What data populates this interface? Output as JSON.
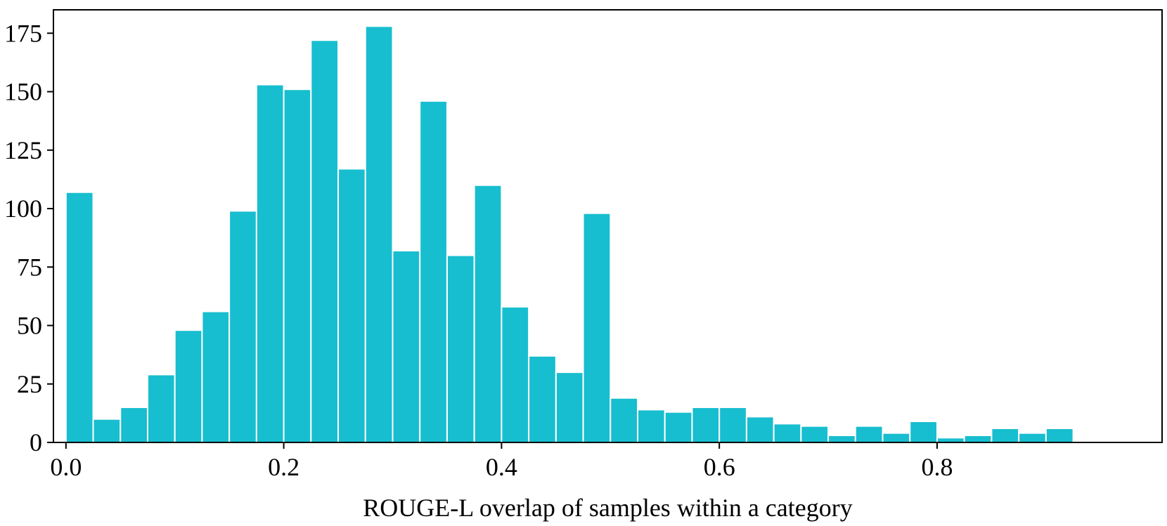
{
  "chart_data": {
    "type": "bar",
    "histogram": true,
    "xlabel": "ROUGE-L overlap of samples within a category",
    "ylabel": "",
    "xlim": [
      -0.0115,
      1.0066
    ],
    "ylim": [
      0,
      185
    ],
    "x_ticks": [
      "0.0",
      "0.2",
      "0.4",
      "0.6",
      "0.8"
    ],
    "y_ticks": [
      "0",
      "25",
      "50",
      "75",
      "100",
      "125",
      "150",
      "175"
    ],
    "bar_color": "#17becf",
    "bins": [
      {
        "start": 0.0,
        "end": 0.025,
        "count": 107
      },
      {
        "start": 0.025,
        "end": 0.05,
        "count": 10
      },
      {
        "start": 0.05,
        "end": 0.075,
        "count": 15
      },
      {
        "start": 0.075,
        "end": 0.1,
        "count": 29
      },
      {
        "start": 0.1,
        "end": 0.125,
        "count": 48
      },
      {
        "start": 0.125,
        "end": 0.15,
        "count": 56
      },
      {
        "start": 0.15,
        "end": 0.175,
        "count": 99
      },
      {
        "start": 0.175,
        "end": 0.2,
        "count": 153
      },
      {
        "start": 0.2,
        "end": 0.225,
        "count": 151
      },
      {
        "start": 0.225,
        "end": 0.25,
        "count": 172
      },
      {
        "start": 0.25,
        "end": 0.275,
        "count": 117
      },
      {
        "start": 0.275,
        "end": 0.3,
        "count": 178
      },
      {
        "start": 0.3,
        "end": 0.325,
        "count": 82
      },
      {
        "start": 0.325,
        "end": 0.35,
        "count": 146
      },
      {
        "start": 0.35,
        "end": 0.375,
        "count": 80
      },
      {
        "start": 0.375,
        "end": 0.4,
        "count": 110
      },
      {
        "start": 0.4,
        "end": 0.425,
        "count": 58
      },
      {
        "start": 0.425,
        "end": 0.45,
        "count": 37
      },
      {
        "start": 0.45,
        "end": 0.475,
        "count": 30
      },
      {
        "start": 0.475,
        "end": 0.5,
        "count": 98
      },
      {
        "start": 0.5,
        "end": 0.525,
        "count": 19
      },
      {
        "start": 0.525,
        "end": 0.55,
        "count": 14
      },
      {
        "start": 0.55,
        "end": 0.575,
        "count": 13
      },
      {
        "start": 0.575,
        "end": 0.6,
        "count": 15
      },
      {
        "start": 0.6,
        "end": 0.625,
        "count": 15
      },
      {
        "start": 0.625,
        "end": 0.65,
        "count": 11
      },
      {
        "start": 0.65,
        "end": 0.675,
        "count": 8
      },
      {
        "start": 0.675,
        "end": 0.7,
        "count": 7
      },
      {
        "start": 0.7,
        "end": 0.725,
        "count": 3
      },
      {
        "start": 0.725,
        "end": 0.75,
        "count": 7
      },
      {
        "start": 0.75,
        "end": 0.775,
        "count": 4
      },
      {
        "start": 0.775,
        "end": 0.8,
        "count": 9
      },
      {
        "start": 0.8,
        "end": 0.825,
        "count": 2
      },
      {
        "start": 0.825,
        "end": 0.85,
        "count": 3
      },
      {
        "start": 0.85,
        "end": 0.875,
        "count": 6
      },
      {
        "start": 0.875,
        "end": 0.9,
        "count": 4
      },
      {
        "start": 0.9,
        "end": 0.925,
        "count": 6
      }
    ],
    "grid": false,
    "legend": "none"
  }
}
